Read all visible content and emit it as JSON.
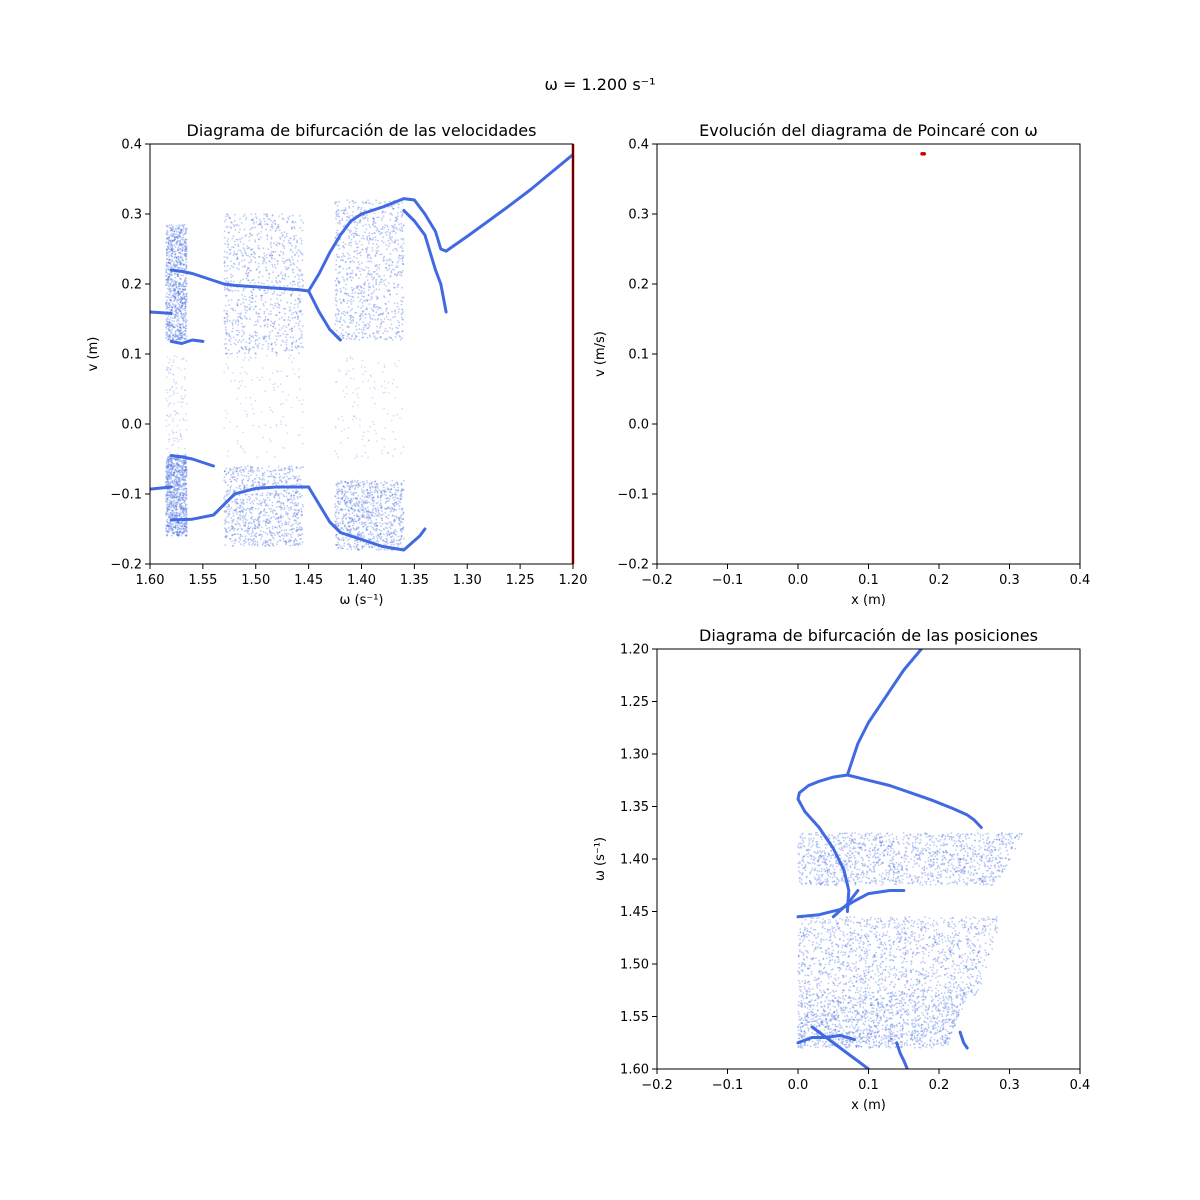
{
  "suptitle": "ω = 1.200 s⁻¹",
  "colors": {
    "points": "#4169e1",
    "marker": "#cc0000",
    "frame": "#000000",
    "background": "#ffffff"
  },
  "chart_data": [
    {
      "id": "velocities",
      "type": "scatter",
      "title": "Diagrama de bifurcación de las velocidades",
      "xlabel": "ω (s⁻¹)",
      "ylabel": "v (m)",
      "xlim": [
        1.6,
        1.2
      ],
      "ylim": [
        -0.2,
        0.4
      ],
      "xticks": [
        "1.60",
        "1.55",
        "1.50",
        "1.45",
        "1.40",
        "1.35",
        "1.30",
        "1.25",
        "1.20"
      ],
      "yticks": [
        "−0.2",
        "−0.1",
        "0.0",
        "0.1",
        "0.2",
        "0.3",
        "0.4"
      ],
      "grid": false,
      "current_omega": 1.2,
      "branches": [
        {
          "name": "",
          "x": [
            1.6,
            1.58
          ],
          "y": [
            0.16,
            0.158
          ]
        },
        {
          "name": "",
          "x": [
            1.6,
            1.58
          ],
          "y": [
            -0.093,
            -0.09
          ]
        },
        {
          "name": "",
          "x": [
            1.32,
            1.3,
            1.28,
            1.26,
            1.24,
            1.22,
            1.2
          ],
          "y": [
            0.247,
            0.268,
            0.29,
            0.312,
            0.335,
            0.36,
            0.385
          ]
        },
        {
          "name": "",
          "x": [
            1.45,
            1.44,
            1.43,
            1.42,
            1.41
          ],
          "y": [
            0.19,
            0.215,
            0.245,
            0.27,
            0.29
          ]
        },
        {
          "name": "",
          "x": [
            1.41,
            1.4,
            1.38,
            1.36,
            1.35,
            1.34,
            1.33,
            1.325,
            1.32
          ],
          "y": [
            0.29,
            0.3,
            0.31,
            0.322,
            0.32,
            0.3,
            0.275,
            0.25,
            0.247
          ]
        },
        {
          "name": "",
          "x": [
            1.36,
            1.35,
            1.34,
            1.335,
            1.33,
            1.325,
            1.32
          ],
          "y": [
            0.305,
            0.29,
            0.27,
            0.245,
            0.22,
            0.2,
            0.16
          ]
        },
        {
          "name": "",
          "x": [
            1.45,
            1.44,
            1.43,
            1.42,
            1.4,
            1.38,
            1.36,
            1.345,
            1.34
          ],
          "y": [
            -0.09,
            -0.115,
            -0.14,
            -0.155,
            -0.165,
            -0.175,
            -0.18,
            -0.16,
            -0.15
          ]
        },
        {
          "name": "",
          "x": [
            1.45,
            1.44,
            1.43,
            1.42
          ],
          "y": [
            0.19,
            0.16,
            0.135,
            0.12
          ]
        },
        {
          "name": "",
          "x": [
            1.58,
            1.57,
            1.56,
            1.55,
            1.54,
            1.53,
            1.52,
            1.5,
            1.48,
            1.46,
            1.45
          ],
          "y": [
            0.22,
            0.218,
            0.215,
            0.21,
            0.205,
            0.2,
            0.198,
            0.196,
            0.194,
            0.192,
            0.19
          ]
        },
        {
          "name": "",
          "x": [
            1.58,
            1.56,
            1.54,
            1.52,
            1.5,
            1.48,
            1.46,
            1.45
          ],
          "y": [
            -0.137,
            -0.136,
            -0.13,
            -0.1,
            -0.092,
            -0.09,
            -0.09,
            -0.09
          ]
        },
        {
          "name": "",
          "x": [
            1.58,
            1.57,
            1.56,
            1.55
          ],
          "y": [
            0.118,
            0.115,
            0.12,
            0.118
          ]
        },
        {
          "name": "",
          "x": [
            1.58,
            1.57,
            1.56,
            1.55,
            1.54
          ],
          "y": [
            -0.045,
            -0.047,
            -0.05,
            -0.055,
            -0.06
          ]
        }
      ],
      "chaotic_bands": [
        {
          "x": [
            1.585,
            1.565
          ],
          "y": [
            [
              0.12,
              0.285
            ],
            [
              -0.16,
              -0.045
            ]
          ]
        },
        {
          "x": [
            1.53,
            1.455
          ],
          "y": [
            [
              0.1,
              0.3
            ],
            [
              -0.175,
              -0.06
            ]
          ]
        },
        {
          "x": [
            1.425,
            1.36
          ],
          "y": [
            [
              0.12,
              0.32
            ],
            [
              -0.18,
              -0.08
            ]
          ]
        }
      ]
    },
    {
      "id": "poincare",
      "type": "scatter",
      "title": "Evolución del diagrama de Poincaré con ω",
      "xlabel": "x (m)",
      "ylabel": "v (m/s)",
      "xlim": [
        -0.2,
        0.4
      ],
      "ylim": [
        -0.2,
        0.4
      ],
      "xticks": [
        "−0.2",
        "−0.1",
        "0.0",
        "0.1",
        "0.2",
        "0.3",
        "0.4"
      ],
      "yticks": [
        "−0.2",
        "−0.1",
        "0.0",
        "0.1",
        "0.2",
        "0.3",
        "0.4"
      ],
      "grid": false,
      "points": [
        {
          "x": 0.176,
          "y": 0.386
        },
        {
          "x": 0.179,
          "y": 0.386
        }
      ]
    },
    {
      "id": "positions",
      "type": "scatter",
      "title": "Diagrama de bifurcación de las posiciones",
      "xlabel": "x (m)",
      "ylabel": "ω (s⁻¹)",
      "xlim": [
        -0.2,
        0.4
      ],
      "ylim": [
        1.2,
        1.6
      ],
      "xticks": [
        "−0.2",
        "−0.1",
        "0.0",
        "0.1",
        "0.2",
        "0.3",
        "0.4"
      ],
      "yticks": [
        "1.20",
        "1.25",
        "1.30",
        "1.35",
        "1.40",
        "1.45",
        "1.50",
        "1.55",
        "1.60"
      ],
      "grid": false,
      "branches": [
        {
          "name": "",
          "x": [
            0.175,
            0.15,
            0.125,
            0.1,
            0.085,
            0.075,
            0.07
          ],
          "y": [
            1.2,
            1.22,
            1.245,
            1.27,
            1.29,
            1.31,
            1.32
          ]
        },
        {
          "name": "",
          "x": [
            0.07,
            0.1,
            0.13,
            0.16,
            0.19,
            0.22,
            0.24,
            0.25,
            0.26
          ],
          "y": [
            1.32,
            1.325,
            1.33,
            1.337,
            1.344,
            1.352,
            1.358,
            1.363,
            1.37
          ]
        },
        {
          "name": "",
          "x": [
            0.07,
            0.05,
            0.03,
            0.015,
            0.002,
            0.0,
            0.01
          ],
          "y": [
            1.32,
            1.322,
            1.326,
            1.33,
            1.337,
            1.343,
            1.355
          ]
        },
        {
          "name": "",
          "x": [
            0.01,
            0.03,
            0.05,
            0.065,
            0.072,
            0.07
          ],
          "y": [
            1.355,
            1.37,
            1.39,
            1.41,
            1.43,
            1.45
          ]
        },
        {
          "name": "",
          "x": [
            0.0,
            0.03,
            0.06,
            0.08,
            0.1,
            0.13,
            0.15
          ],
          "y": [
            1.455,
            1.453,
            1.448,
            1.44,
            1.433,
            1.43,
            1.43
          ]
        },
        {
          "name": "",
          "x": [
            0.085,
            0.07,
            0.05
          ],
          "y": [
            1.43,
            1.443,
            1.455
          ]
        },
        {
          "name": "",
          "x": [
            0.02,
            0.04,
            0.06,
            0.08,
            0.1
          ],
          "y": [
            1.56,
            1.57,
            1.58,
            1.59,
            1.6
          ]
        },
        {
          "name": "",
          "x": [
            0.14,
            0.145,
            0.15,
            0.155
          ],
          "y": [
            1.575,
            1.585,
            1.592,
            1.6
          ]
        },
        {
          "name": "",
          "x": [
            0.0,
            0.02,
            0.04,
            0.06,
            0.08
          ],
          "y": [
            1.575,
            1.57,
            1.57,
            1.568,
            1.572
          ]
        },
        {
          "name": "",
          "x": [
            0.23,
            0.235,
            0.24
          ],
          "y": [
            1.565,
            1.575,
            1.58
          ]
        }
      ],
      "chaotic_bands": [
        {
          "y": [
            1.375,
            1.425
          ],
          "x": [
            [
              0.0,
              0.32
            ]
          ]
        },
        {
          "y": [
            1.455,
            1.53
          ],
          "x": [
            [
              0.0,
              0.29
            ]
          ]
        },
        {
          "y": [
            1.53,
            1.58
          ],
          "x": [
            [
              0.0,
              0.24
            ]
          ]
        }
      ]
    }
  ]
}
